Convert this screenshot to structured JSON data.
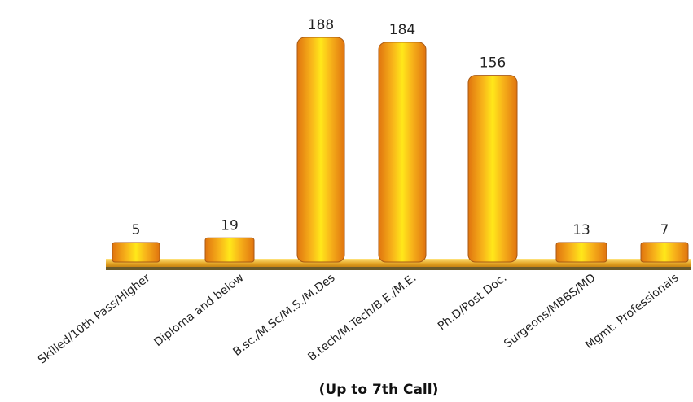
{
  "chart_data": {
    "type": "bar",
    "categories": [
      "Skilled/10th Pass/Higher",
      "Diploma and below",
      "B.sc./M.Sc/M.S./M.Des",
      "B.tech/M.Tech/B.E./M.E.",
      "Ph.D/Post Doc.",
      "Surgeons/MBBS/MD",
      "Mgmt. Professionals"
    ],
    "values": [
      5,
      19,
      188,
      184,
      156,
      13,
      7
    ],
    "title": "",
    "caption": "(Up to  7th Call)",
    "xlabel": "",
    "ylabel": "",
    "ylim": [
      0,
      188
    ],
    "grid": false,
    "legend": "none",
    "colors": {
      "bar_center": "#ffe81a",
      "bar_edge": "#e0740f",
      "bar_outline": "#a85a14",
      "baseline": "#e3a323",
      "baseline_shadow": "#6b5a2a"
    }
  }
}
